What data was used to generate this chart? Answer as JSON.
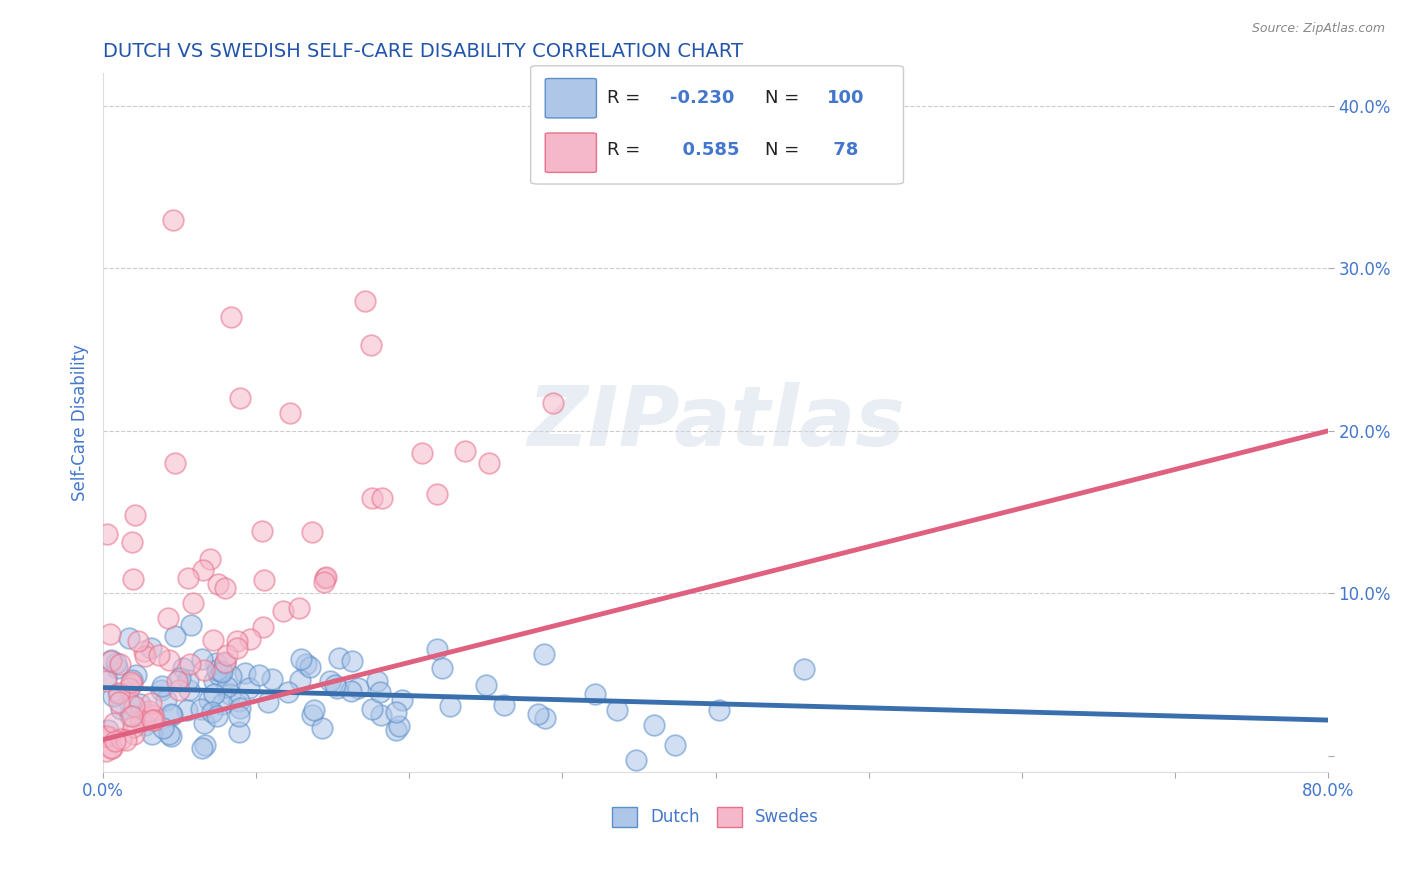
{
  "title": "DUTCH VS SWEDISH SELF-CARE DISABILITY CORRELATION CHART",
  "source": "Source: ZipAtlas.com",
  "ylabel": "Self-Care Disability",
  "xlim": [
    0.0,
    0.8
  ],
  "ylim": [
    -0.01,
    0.42
  ],
  "dutch_R": -0.23,
  "dutch_N": 100,
  "swedes_R": 0.585,
  "swedes_N": 78,
  "dutch_color": "#aec6e8",
  "dutch_edge_color": "#5b8fc9",
  "dutch_line_color": "#3a6fad",
  "swedes_color": "#f5b8cb",
  "swedes_edge_color": "#e8708a",
  "swedes_line_color": "#e06080",
  "title_color": "#2255aa",
  "axis_color": "#4477cc",
  "watermark": "ZIPatlas",
  "background_color": "#ffffff",
  "grid_color": "#cccccc",
  "legend_text_color": "#4477cc",
  "legend_label_color": "#333333",
  "source_color": "#888888"
}
